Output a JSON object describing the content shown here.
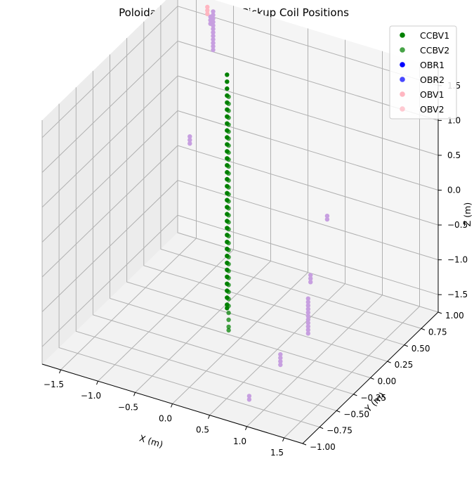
{
  "chart_data": {
    "type": "scatter3d",
    "title": "Poloidal Magnetic Field Pickup Coil Positions",
    "xlabel": "X (m)",
    "ylabel": "Y (m)",
    "zlabel": "Z (m)",
    "xlim": [
      -1.75,
      1.75
    ],
    "ylim": [
      -1.0,
      1.0
    ],
    "zlim": [
      -1.75,
      1.75
    ],
    "xticks": [
      -1.5,
      -1.0,
      -0.5,
      0.0,
      0.5,
      1.0,
      1.5
    ],
    "xtick_labels": [
      "−1.5",
      "−1.0",
      "−0.5",
      "0.0",
      "0.5",
      "1.0",
      "1.5"
    ],
    "yticks": [
      -1.0,
      -0.75,
      -0.5,
      -0.25,
      0.0,
      0.25,
      0.5,
      0.75,
      1.0
    ],
    "ytick_labels": [
      "−1.00",
      "−0.75",
      "−0.50",
      "−0.25",
      "0.00",
      "0.25",
      "0.50",
      "0.75",
      "1.00"
    ],
    "zticks": [
      -1.5,
      -1.0,
      -0.5,
      0.0,
      0.5,
      1.0,
      1.5
    ],
    "ztick_labels": [
      "−1.5",
      "−1.0",
      "−0.5",
      "0.0",
      "0.5",
      "1.0",
      "1.5"
    ],
    "grid": true,
    "legend_position": "top-right",
    "series": [
      {
        "name": "CCBV1",
        "color": "#008000",
        "alpha": 1.0,
        "x": [
          -0.45,
          -0.45,
          -0.45,
          -0.45,
          -0.45,
          -0.45,
          -0.45,
          -0.45,
          -0.45,
          -0.45,
          -0.45,
          -0.45,
          -0.45,
          -0.45,
          -0.45,
          -0.45,
          -0.45,
          -0.45,
          -0.45,
          -0.45,
          -0.45,
          -0.45,
          -0.45,
          -0.45,
          -0.45,
          -0.45,
          -0.45,
          -0.45,
          -0.45,
          -0.45,
          -0.45,
          -0.45,
          -0.45,
          -0.45,
          -0.45
        ],
        "y": [
          0.3,
          0.3,
          0.3,
          0.3,
          0.3,
          0.3,
          0.3,
          0.3,
          0.3,
          0.3,
          0.3,
          0.3,
          0.3,
          0.3,
          0.3,
          0.3,
          0.3,
          0.3,
          0.3,
          0.3,
          0.3,
          0.3,
          0.3,
          0.3,
          0.3,
          0.3,
          0.3,
          0.3,
          0.3,
          0.3,
          0.3,
          0.3,
          0.3,
          0.3,
          0.3
        ],
        "z": [
          1.6,
          1.5,
          1.4,
          1.3,
          1.2,
          1.1,
          1.0,
          0.9,
          0.8,
          0.7,
          0.6,
          0.5,
          0.4,
          0.3,
          0.2,
          0.1,
          0.0,
          -0.1,
          -0.2,
          -0.3,
          -0.4,
          -0.5,
          -0.6,
          -0.7,
          -0.8,
          -0.9,
          -1.0,
          -1.1,
          -1.2,
          -1.3,
          -1.4,
          -1.5,
          -1.6,
          -1.7,
          -1.75
        ]
      },
      {
        "name": "CCBV2",
        "color": "#008000",
        "alpha": 0.72,
        "x": [
          -0.2,
          -0.2,
          -0.2,
          -0.2,
          -0.2,
          -0.2,
          -0.2,
          -0.2,
          -0.2,
          -0.2,
          -0.2,
          -0.2,
          -0.2,
          -0.2,
          -0.2,
          -0.2,
          -0.2,
          -0.2,
          -0.2,
          -0.2,
          -0.2,
          -0.2,
          -0.2,
          -0.2,
          -0.2,
          -0.2,
          -0.2,
          -0.2,
          -0.2,
          -0.2,
          -0.2,
          -0.2,
          -0.2,
          -0.2,
          -0.2
        ],
        "y": [
          0.05,
          0.05,
          0.05,
          0.05,
          0.05,
          0.05,
          0.05,
          0.05,
          0.05,
          0.05,
          0.05,
          0.05,
          0.05,
          0.05,
          0.05,
          0.05,
          0.05,
          0.05,
          0.05,
          0.05,
          0.05,
          0.05,
          0.05,
          0.05,
          0.05,
          0.05,
          0.05,
          0.05,
          0.05,
          0.05,
          0.05,
          0.05,
          0.05,
          0.05,
          0.05
        ],
        "z": [
          1.6,
          1.5,
          1.4,
          1.3,
          1.2,
          1.1,
          1.0,
          0.9,
          0.8,
          0.7,
          0.6,
          0.5,
          0.4,
          0.3,
          0.2,
          0.1,
          0.0,
          -0.1,
          -0.2,
          -0.3,
          -0.4,
          -0.5,
          -0.6,
          -0.7,
          -0.8,
          -0.9,
          -1.0,
          -1.1,
          -1.2,
          -1.3,
          -1.4,
          -1.5,
          -1.6,
          -1.7,
          -1.75
        ]
      },
      {
        "name": "OBR1",
        "color": "#0000ff",
        "alpha": 1.0,
        "x": [],
        "y": [],
        "z": []
      },
      {
        "name": "OBR2",
        "color": "#0000ff",
        "alpha": 0.72,
        "x": [
          -1.0,
          -1.0,
          -1.0,
          -1.0,
          -1.0,
          -1.0,
          -1.0,
          -1.0,
          -1.0,
          -1.0,
          -1.0,
          -1.0,
          -0.9,
          -0.9,
          -0.9,
          -0.95,
          -0.95,
          -0.95,
          0.85,
          0.85,
          0.9,
          0.9,
          0.9,
          1.05,
          1.05,
          1.05,
          1.05,
          1.05,
          1.05,
          1.05,
          1.05,
          1.05,
          1.05,
          1.05,
          0.95,
          0.95,
          0.95,
          0.95,
          0.85,
          0.85
        ],
        "y": [
          0.7,
          0.7,
          0.7,
          0.7,
          0.7,
          0.7,
          0.7,
          0.7,
          0.7,
          0.7,
          0.7,
          0.7,
          0.55,
          0.55,
          0.55,
          0.3,
          0.3,
          0.3,
          0.35,
          0.35,
          0.05,
          0.05,
          0.05,
          -0.15,
          -0.15,
          -0.15,
          -0.15,
          -0.15,
          -0.15,
          -0.15,
          -0.15,
          -0.15,
          -0.15,
          -0.15,
          -0.45,
          -0.45,
          -0.45,
          -0.45,
          -0.8,
          -0.8
        ],
        "z": [
          1.95,
          1.9,
          1.85,
          1.8,
          1.75,
          1.7,
          1.65,
          1.6,
          1.55,
          1.5,
          1.45,
          1.4,
          2.05,
          2.0,
          1.95,
          0.55,
          0.5,
          0.45,
          -0.05,
          -0.1,
          -0.6,
          -0.65,
          -0.7,
          -0.7,
          -0.75,
          -0.8,
          -0.85,
          -0.9,
          -0.95,
          -1.0,
          -1.05,
          -1.1,
          -1.15,
          -1.2,
          -1.25,
          -1.3,
          -1.35,
          -1.4,
          -1.55,
          -1.6
        ]
      },
      {
        "name": "OBV1",
        "color": "#ffb6c1",
        "alpha": 1.0,
        "x": [
          -0.85,
          -0.85,
          -0.85
        ],
        "y": [
          0.45,
          0.45,
          0.45
        ],
        "z": [
          2.3,
          2.25,
          2.2
        ]
      },
      {
        "name": "OBV2",
        "color": "#ffb6c1",
        "alpha": 0.72,
        "x": [],
        "y": [],
        "z": []
      }
    ]
  }
}
